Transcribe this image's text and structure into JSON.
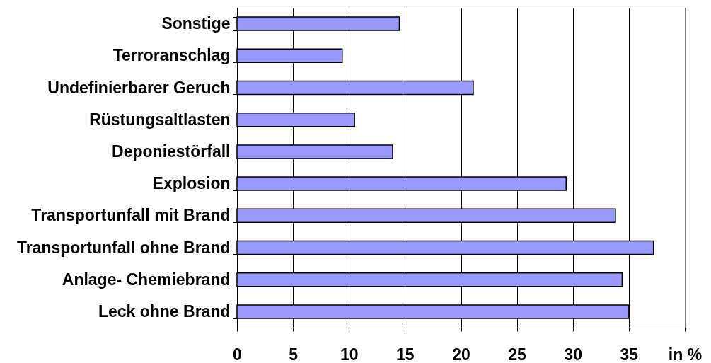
{
  "chart_data": {
    "type": "bar",
    "orientation": "horizontal",
    "categories": [
      "Sonstige",
      "Terroranschlag",
      "Undefinierbarer Geruch",
      "Rüstungsaltlasten",
      "Deponiestörfall",
      "Explosion",
      "Transportunfall mit Brand",
      "Transportunfall ohne Brand",
      "Anlage- Chemiebrand",
      "Leck ohne Brand"
    ],
    "values": [
      14.5,
      9.4,
      21.1,
      10.5,
      13.9,
      29.4,
      33.8,
      37.2,
      34.4,
      35.0
    ],
    "color": "#9999ff",
    "xlim": [
      0,
      40
    ],
    "xticks": [
      0,
      5,
      10,
      15,
      20,
      25,
      30,
      35,
      {
        "value": 40,
        "label": "in %"
      }
    ],
    "grid": "x"
  }
}
